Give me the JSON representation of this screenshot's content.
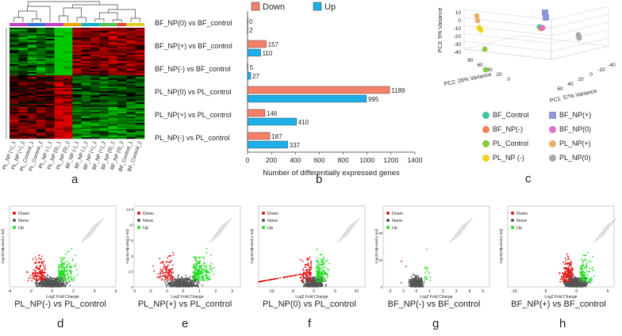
{
  "chart_data": [
    {
      "panel": "a",
      "type": "heatmap",
      "title": "",
      "samples": [
        "PL_NP (+)_1",
        "PL_NP (+)_2",
        "PL_Control_1",
        "PL_Control_2",
        "PL_NP (-)_1",
        "PL_NP (0)_1",
        "PL_NP (0)_2",
        "BF_NP (-)_1",
        "BF_NP (-)_2",
        "BF_NP (+)_1",
        "BF_NP (+)_2",
        "BF_NP (0)_1",
        "BF_NP (0)_2",
        "BF_Control_1",
        "BF_Control_2"
      ],
      "colors": {
        "up": "#d00000",
        "down": "#00b000",
        "mid": "#111111"
      }
    },
    {
      "panel": "b",
      "type": "bar",
      "orientation": "horizontal",
      "categories": [
        "BF_NP(0) vs BF_control",
        "BF_NP(+) vs BF_control",
        "BF_NP(-) vs BF_control",
        "PL_NP(0) vs PL_control",
        "PL_NP(+) vs PL_control",
        "PL_NP(-) vs PL_control"
      ],
      "series": [
        {
          "name": "Down",
          "color": "#f4806a",
          "values": [
            0,
            157,
            5,
            1189,
            146,
            187
          ]
        },
        {
          "name": "Up",
          "color": "#1eaee8",
          "values": [
            2,
            110,
            27,
            995,
            410,
            337
          ]
        }
      ],
      "xlabel": "Number of differentially expressed genes",
      "xlim": [
        0,
        1400
      ],
      "xticks": [
        0,
        200,
        400,
        600,
        800,
        1000,
        1200,
        1400
      ],
      "legend": "top"
    },
    {
      "panel": "c",
      "type": "scatter",
      "projection": "3d",
      "axes": {
        "x": "PC1: 57% Variance",
        "y": "PC2: 26% Variance",
        "z": "PC3: 5% Variance"
      },
      "zticks": [
        10,
        0,
        -10,
        -20,
        -30,
        -40
      ],
      "yticks": [
        80,
        60,
        40,
        20,
        0
      ],
      "xticks": [
        -40,
        -20,
        0,
        20,
        40,
        60
      ],
      "groups": [
        {
          "name": "BF_Control",
          "color": "#3cc8a0"
        },
        {
          "name": "BF_NP(+)",
          "color": "#8c96d8"
        },
        {
          "name": "BF_NP(-)",
          "color": "#f4805a"
        },
        {
          "name": "BF_NP(0)",
          "color": "#e070c8"
        },
        {
          "name": "PL_Control",
          "color": "#88cc44"
        },
        {
          "name": "PL_NP(+)",
          "color": "#e8b070"
        },
        {
          "name": "PL_NP (-)",
          "color": "#f2d21a"
        },
        {
          "name": "PL_NP(0)",
          "color": "#a8a8a8"
        }
      ]
    },
    {
      "panel": "d",
      "type": "scatter",
      "subtype": "volcano",
      "title": "PL_NP(-) vs PL_control",
      "xlabel": "Log2 Fold Change",
      "ylabel": "-log10(Adjusted p-Val)",
      "xticks": [
        -4,
        -2,
        0,
        2,
        4,
        6
      ],
      "legend": [
        "Down",
        "None",
        "Up"
      ]
    },
    {
      "panel": "e",
      "type": "scatter",
      "subtype": "volcano",
      "title": "PL_NP(+) vs PL_control",
      "xlabel": "Log2 Fold Change",
      "ylabel": "-log10(Adjusted p-Val)",
      "yticks": [
        0,
        2.5,
        5.0,
        7.5,
        10.0,
        12.5
      ],
      "xticks": [
        -3,
        -2,
        -1,
        0,
        1,
        2,
        3
      ],
      "legend": [
        "Down",
        "None",
        "Up"
      ]
    },
    {
      "panel": "f",
      "type": "scatter",
      "subtype": "volcano",
      "title": "PL_NP(0) vs PL_control",
      "xlabel": "Log2 Fold Change",
      "ylabel": "-log10(Adjusted p-Val)",
      "xticks": [
        -10,
        -5,
        0,
        5,
        10
      ],
      "legend": [
        "Down",
        "None",
        "Up"
      ]
    },
    {
      "panel": "g",
      "type": "scatter",
      "subtype": "volcano",
      "title": "BF_NP(-) vs BF_control",
      "xlabel": "Log2 Fold Change",
      "ylabel": "-log10(Adjusted p-Val)",
      "yticks": [
        0,
        10,
        20
      ],
      "xticks": [
        -2,
        -1,
        0,
        1,
        2,
        3,
        4,
        5
      ],
      "legend": [
        "Down",
        "None",
        "Up"
      ]
    },
    {
      "panel": "h",
      "type": "scatter",
      "subtype": "volcano",
      "title": "BF_NP(+) vs BF_control",
      "xlabel": "Log2 Fold Change",
      "ylabel": "-log10(Adjusted p-Val)",
      "xticks": [
        -10,
        -5,
        0,
        5
      ],
      "legend": [
        "Down",
        "None",
        "Up"
      ]
    }
  ],
  "panel_labels": [
    "a",
    "b",
    "c",
    "d",
    "e",
    "f",
    "g",
    "h"
  ],
  "volcano_colors": {
    "down": "#e01010",
    "none": "#555555",
    "up": "#22dd22"
  }
}
